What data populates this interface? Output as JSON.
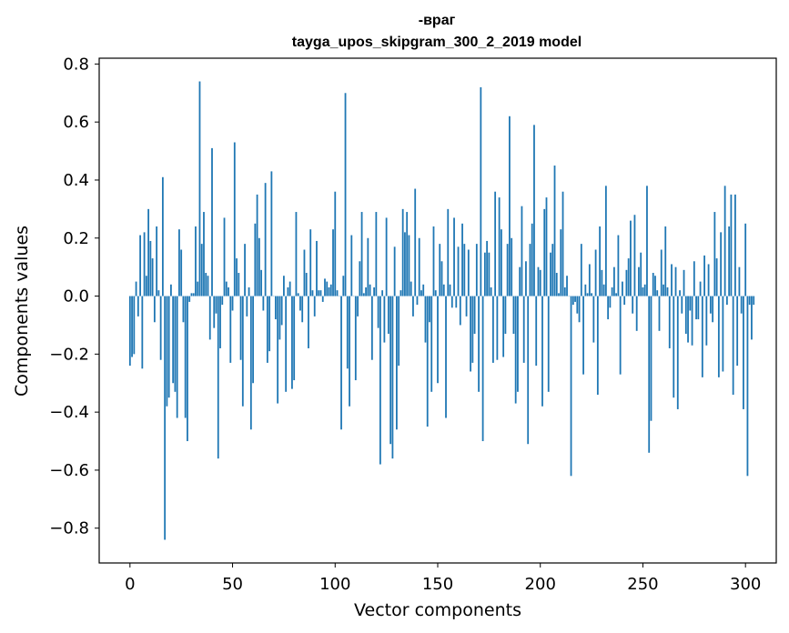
{
  "chart_data": {
    "type": "bar",
    "title_line1": "-враг",
    "title_line2": "tayga_upos_skipgram_300_2_2019 model",
    "xlabel": "Vector components",
    "ylabel": "Components values",
    "xlim": [
      -15,
      315
    ],
    "ylim": [
      -0.92,
      0.82
    ],
    "xticks": [
      0,
      50,
      100,
      150,
      200,
      250,
      300
    ],
    "xtick_labels": [
      "0",
      "50",
      "100",
      "150",
      "200",
      "250",
      "300"
    ],
    "yticks": [
      -0.8,
      -0.6,
      -0.4,
      -0.2,
      0.0,
      0.2,
      0.4,
      0.6,
      0.8
    ],
    "ytick_labels": [
      "−0.8",
      "−0.6",
      "−0.4",
      "−0.2",
      "0.0",
      "0.2",
      "0.4",
      "0.6",
      "0.8"
    ],
    "bar_color": "#1f77b4",
    "grid": false,
    "values": [
      -0.24,
      -0.21,
      -0.2,
      0.05,
      -0.07,
      0.21,
      -0.25,
      0.22,
      0.07,
      0.3,
      0.19,
      0.13,
      -0.09,
      0.24,
      0.02,
      -0.22,
      0.41,
      -0.84,
      -0.38,
      -0.35,
      0.04,
      -0.3,
      -0.33,
      -0.42,
      0.23,
      0.16,
      -0.09,
      -0.42,
      -0.5,
      -0.02,
      0.01,
      0.01,
      0.24,
      0.05,
      0.74,
      0.18,
      0.29,
      0.08,
      0.07,
      -0.15,
      0.51,
      -0.11,
      -0.06,
      -0.56,
      -0.18,
      -0.03,
      0.27,
      0.05,
      0.03,
      -0.23,
      -0.05,
      0.53,
      0.13,
      0.08,
      -0.22,
      -0.38,
      0.18,
      -0.07,
      0.03,
      -0.46,
      -0.3,
      0.25,
      0.35,
      0.2,
      0.09,
      -0.05,
      0.39,
      -0.23,
      -0.19,
      0.43,
      0.0,
      -0.08,
      -0.37,
      -0.15,
      -0.1,
      0.07,
      -0.33,
      0.03,
      0.05,
      -0.32,
      -0.29,
      0.29,
      0.01,
      -0.05,
      -0.09,
      0.16,
      0.08,
      -0.18,
      0.23,
      0.02,
      -0.07,
      0.19,
      0.02,
      0.02,
      -0.02,
      0.06,
      0.05,
      0.03,
      0.04,
      0.23,
      0.36,
      0.02,
      0.0,
      -0.46,
      0.07,
      0.7,
      -0.25,
      -0.38,
      0.21,
      0.0,
      -0.29,
      -0.07,
      0.12,
      0.29,
      0.01,
      0.03,
      0.2,
      0.04,
      -0.22,
      0.03,
      0.29,
      -0.11,
      -0.58,
      0.02,
      -0.16,
      0.27,
      -0.13,
      -0.51,
      -0.56,
      0.17,
      -0.46,
      -0.24,
      0.02,
      0.3,
      0.22,
      0.29,
      0.21,
      0.05,
      -0.07,
      0.37,
      -0.03,
      0.2,
      0.02,
      0.04,
      -0.16,
      -0.45,
      -0.09,
      -0.33,
      0.24,
      0.02,
      -0.3,
      0.18,
      0.12,
      0.04,
      -0.42,
      0.3,
      0.04,
      -0.04,
      0.27,
      -0.04,
      0.17,
      -0.1,
      0.25,
      0.18,
      -0.07,
      0.16,
      -0.26,
      -0.23,
      -0.13,
      0.18,
      -0.33,
      0.72,
      -0.5,
      0.15,
      0.19,
      0.15,
      0.03,
      -0.23,
      0.36,
      -0.22,
      0.34,
      0.23,
      -0.21,
      -0.13,
      0.18,
      0.62,
      0.2,
      -0.13,
      -0.37,
      -0.33,
      0.1,
      0.31,
      -0.23,
      0.12,
      -0.51,
      0.18,
      0.25,
      0.59,
      -0.24,
      0.1,
      0.09,
      -0.38,
      0.3,
      0.34,
      -0.33,
      0.15,
      0.18,
      0.45,
      0.08,
      0.01,
      0.23,
      0.36,
      0.03,
      0.07,
      0.0,
      -0.62,
      -0.03,
      -0.02,
      -0.06,
      -0.09,
      0.18,
      -0.27,
      0.04,
      0.01,
      0.11,
      0.01,
      -0.16,
      0.16,
      -0.34,
      0.24,
      0.09,
      0.04,
      0.38,
      -0.08,
      -0.04,
      0.03,
      0.1,
      0.01,
      0.21,
      -0.27,
      0.05,
      -0.03,
      0.09,
      0.13,
      0.26,
      -0.06,
      0.28,
      -0.12,
      0.1,
      0.15,
      0.03,
      0.04,
      0.38,
      -0.54,
      -0.43,
      0.08,
      0.07,
      0.02,
      -0.12,
      0.16,
      0.04,
      0.24,
      0.03,
      -0.18,
      0.11,
      -0.35,
      0.1,
      -0.39,
      0.02,
      -0.06,
      0.09,
      -0.13,
      -0.16,
      -0.05,
      -0.17,
      0.12,
      -0.08,
      -0.08,
      0.05,
      -0.28,
      0.14,
      -0.17,
      0.11,
      -0.06,
      -0.09,
      0.29,
      0.13,
      -0.28,
      0.22,
      -0.26,
      0.38,
      -0.03,
      0.24,
      0.35,
      -0.34,
      0.35,
      -0.24,
      0.1,
      -0.06,
      -0.39,
      0.25,
      -0.62,
      -0.03,
      -0.15,
      -0.03
    ]
  }
}
